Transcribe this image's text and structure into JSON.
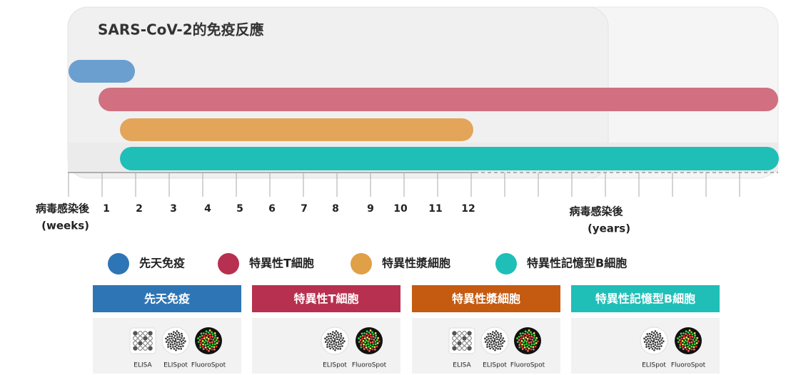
{
  "title": "SARS-CoV-2的免疫反應",
  "x_axis": {
    "weeks": {
      "label": "病毒感染後",
      "unit": "(weeks)",
      "ticks": [
        1,
        2,
        3,
        4,
        5,
        6,
        7,
        8,
        9,
        10,
        11,
        12
      ]
    },
    "years": {
      "label": "病毒感染後",
      "unit": "(years)"
    }
  },
  "legend": [
    {
      "label": "先天免疫",
      "color": "#2e75b6"
    },
    {
      "label": "特異性T細胞",
      "color": "#b8304f"
    },
    {
      "label": "特異性漿細胞",
      "color": "#e0a048"
    },
    {
      "label": "特異性記憶型B細胞",
      "color": "#1fbfb8"
    }
  ],
  "cards": [
    {
      "title": "先天免疫",
      "color": "#2e75b6",
      "methods": [
        "ELISA",
        "ELISpot",
        "FluoroSpot"
      ]
    },
    {
      "title": "特異性T細胞",
      "color": "#b8304f",
      "methods": [
        "ELISpot",
        "FluoroSpot"
      ]
    },
    {
      "title": "特異性漿細胞",
      "color": "#c55a11",
      "methods": [
        "ELISA",
        "ELISpot",
        "FluoroSpot"
      ]
    },
    {
      "title": "特異性記憶型B細胞",
      "color": "#1fbfb8",
      "methods": [
        "ELISpot",
        "FluoroSpot"
      ]
    }
  ]
}
